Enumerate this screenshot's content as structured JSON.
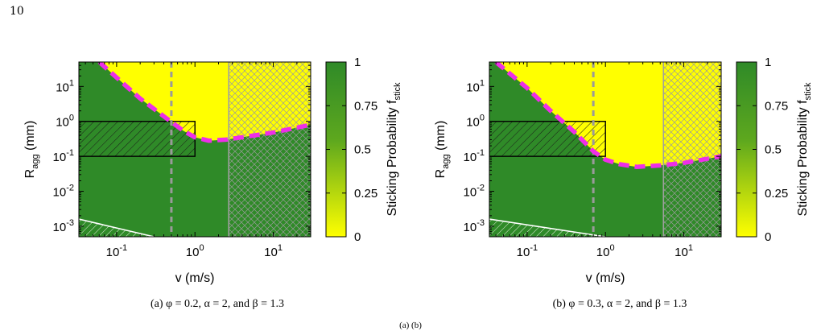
{
  "page_number": "10",
  "footer_note": "(a) (b)",
  "chart_data": [
    {
      "type": "heatmap",
      "caption": "(a) φ = 0.2, α = 2, and β = 1.3",
      "xlabel": "v (m/s)",
      "ylabel": "R_agg (mm)",
      "xscale": "log",
      "yscale": "log",
      "xlim": [
        0.033,
        30
      ],
      "ylim": [
        0.0005,
        50
      ],
      "x_ticks": [
        {
          "value": 0.1,
          "label": "10^-1"
        },
        {
          "value": 1,
          "label": "10^0"
        },
        {
          "value": 10,
          "label": "10^1"
        }
      ],
      "y_ticks": [
        {
          "value": 0.001,
          "label": "10^-3"
        },
        {
          "value": 0.01,
          "label": "10^-2"
        },
        {
          "value": 0.1,
          "label": "10^-1"
        },
        {
          "value": 1,
          "label": "10^0"
        },
        {
          "value": 10,
          "label": "10^1"
        }
      ],
      "colorbar": {
        "label": "Sticking Probability f_stick",
        "range": [
          0,
          1
        ],
        "ticks": [
          0,
          0.25,
          0.5,
          0.75,
          1
        ],
        "colors": [
          "#ffff00",
          "#5ea81e",
          "#2f8a28"
        ]
      },
      "boundary_curve": {
        "style": "magenta dashed",
        "color": "#ee2ee8",
        "points": [
          [
            0.06,
            50
          ],
          [
            0.1,
            18
          ],
          [
            0.2,
            4.5
          ],
          [
            0.4,
            1.4
          ],
          [
            0.7,
            0.55
          ],
          [
            1.0,
            0.35
          ],
          [
            1.5,
            0.28
          ],
          [
            2.5,
            0.3
          ],
          [
            5,
            0.38
          ],
          [
            10,
            0.48
          ],
          [
            30,
            0.8
          ]
        ]
      },
      "bouncing_limit_v": 0.5,
      "fragmentation_limit_v": 2.7,
      "box": {
        "x": [
          0.033,
          1.0
        ],
        "y": [
          0.1,
          1.0
        ]
      },
      "white_line": {
        "points": [
          [
            0.033,
            0.0016
          ],
          [
            0.3,
            0.0005
          ]
        ]
      }
    },
    {
      "type": "heatmap",
      "caption": "(b) φ = 0.3, α = 2, and β = 1.3",
      "xlabel": "v (m/s)",
      "ylabel": "R_agg (mm)",
      "xscale": "log",
      "yscale": "log",
      "xlim": [
        0.033,
        30
      ],
      "ylim": [
        0.0005,
        50
      ],
      "x_ticks": [
        {
          "value": 0.1,
          "label": "10^-1"
        },
        {
          "value": 1,
          "label": "10^0"
        },
        {
          "value": 10,
          "label": "10^1"
        }
      ],
      "y_ticks": [
        {
          "value": 0.001,
          "label": "10^-3"
        },
        {
          "value": 0.01,
          "label": "10^-2"
        },
        {
          "value": 0.1,
          "label": "10^-1"
        },
        {
          "value": 1,
          "label": "10^0"
        },
        {
          "value": 10,
          "label": "10^1"
        }
      ],
      "colorbar": {
        "label": "Sticking Probability f_stick",
        "range": [
          0,
          1
        ],
        "ticks": [
          0,
          0.25,
          0.5,
          0.75,
          1
        ],
        "colors": [
          "#ffff00",
          "#5ea81e",
          "#2f8a28"
        ]
      },
      "boundary_curve": {
        "style": "magenta dashed",
        "color": "#ee2ee8",
        "points": [
          [
            0.04,
            50
          ],
          [
            0.1,
            9
          ],
          [
            0.2,
            2
          ],
          [
            0.4,
            0.5
          ],
          [
            0.7,
            0.14
          ],
          [
            1.0,
            0.08
          ],
          [
            1.5,
            0.06
          ],
          [
            2.5,
            0.05
          ],
          [
            5,
            0.055
          ],
          [
            10,
            0.065
          ],
          [
            30,
            0.1
          ]
        ]
      },
      "bouncing_limit_v": 0.7,
      "fragmentation_limit_v": 5.5,
      "box": {
        "x": [
          0.033,
          1.0
        ],
        "y": [
          0.1,
          1.0
        ]
      },
      "white_line": {
        "points": [
          [
            0.033,
            0.0016
          ],
          [
            1.0,
            0.0005
          ]
        ]
      }
    }
  ]
}
